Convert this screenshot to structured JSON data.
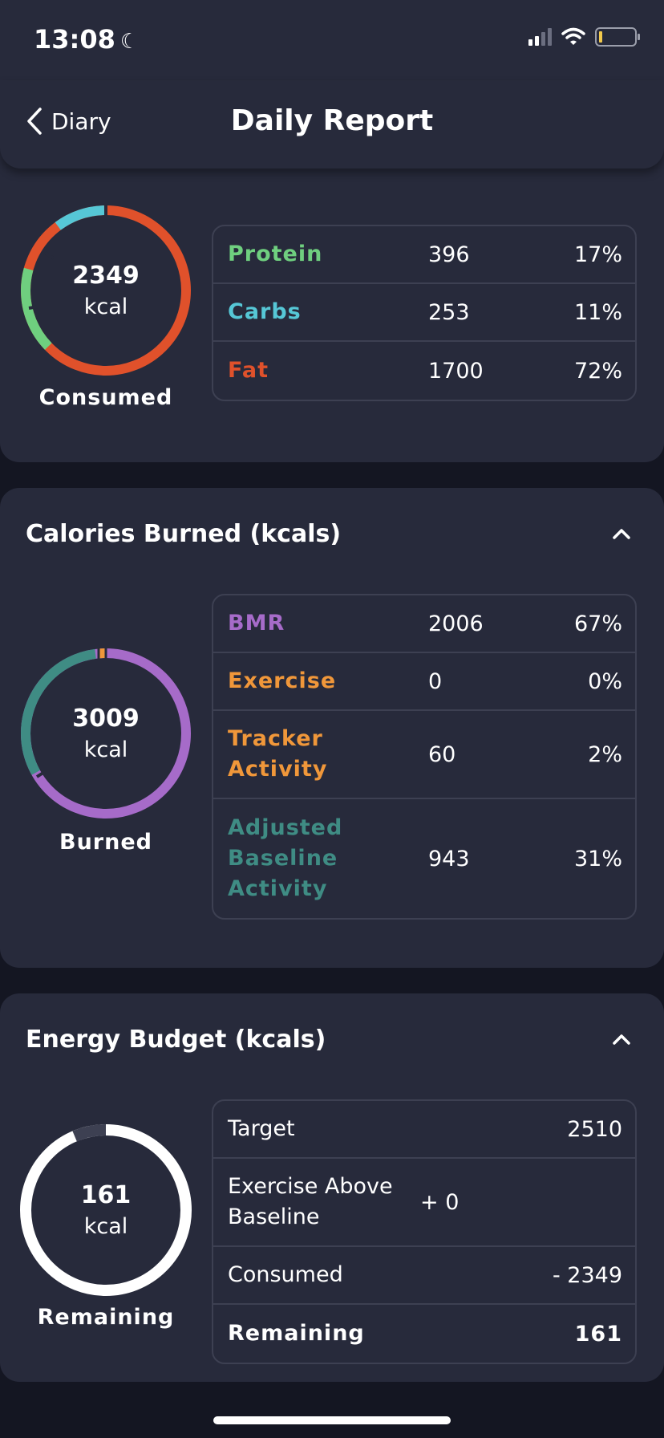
{
  "status": {
    "time": "13:08"
  },
  "nav": {
    "back_label": "Diary",
    "title": "Daily Report"
  },
  "consumed": {
    "total": "2349",
    "unit": "kcal",
    "caption": "Consumed",
    "rows": [
      {
        "label": "Protein",
        "value": "396",
        "pct": "17%",
        "color": "#6fcf7f"
      },
      {
        "label": "Carbs",
        "value": "253",
        "pct": "11%",
        "color": "#56c7d6"
      },
      {
        "label": "Fat",
        "value": "1700",
        "pct": "72%",
        "color": "#e0512b"
      }
    ]
  },
  "burned": {
    "section_title": "Calories Burned (kcals)",
    "total": "3009",
    "unit": "kcal",
    "caption": "Burned",
    "rows": [
      {
        "label": "BMR",
        "value": "2006",
        "pct": "67%",
        "color": "#a66bc9"
      },
      {
        "label": "Exercise",
        "value": "0",
        "pct": "0%",
        "color": "#f0973a"
      },
      {
        "label": "Tracker Activity",
        "value": "60",
        "pct": "2%",
        "color": "#f0973a"
      },
      {
        "label": "Adjusted Baseline Activity",
        "value": "943",
        "pct": "31%",
        "color": "#3f8c84"
      }
    ]
  },
  "budget": {
    "section_title": "Energy Budget (kcals)",
    "total": "161",
    "unit": "kcal",
    "caption": "Remaining",
    "remaining_fraction": 0.064,
    "rows": [
      {
        "label": "Target",
        "value": "2510"
      },
      {
        "label": "Exercise Above Baseline",
        "value": "+ 0"
      },
      {
        "label": "Consumed",
        "value": "- 2349"
      },
      {
        "label": "Remaining",
        "value": "161"
      }
    ]
  }
}
